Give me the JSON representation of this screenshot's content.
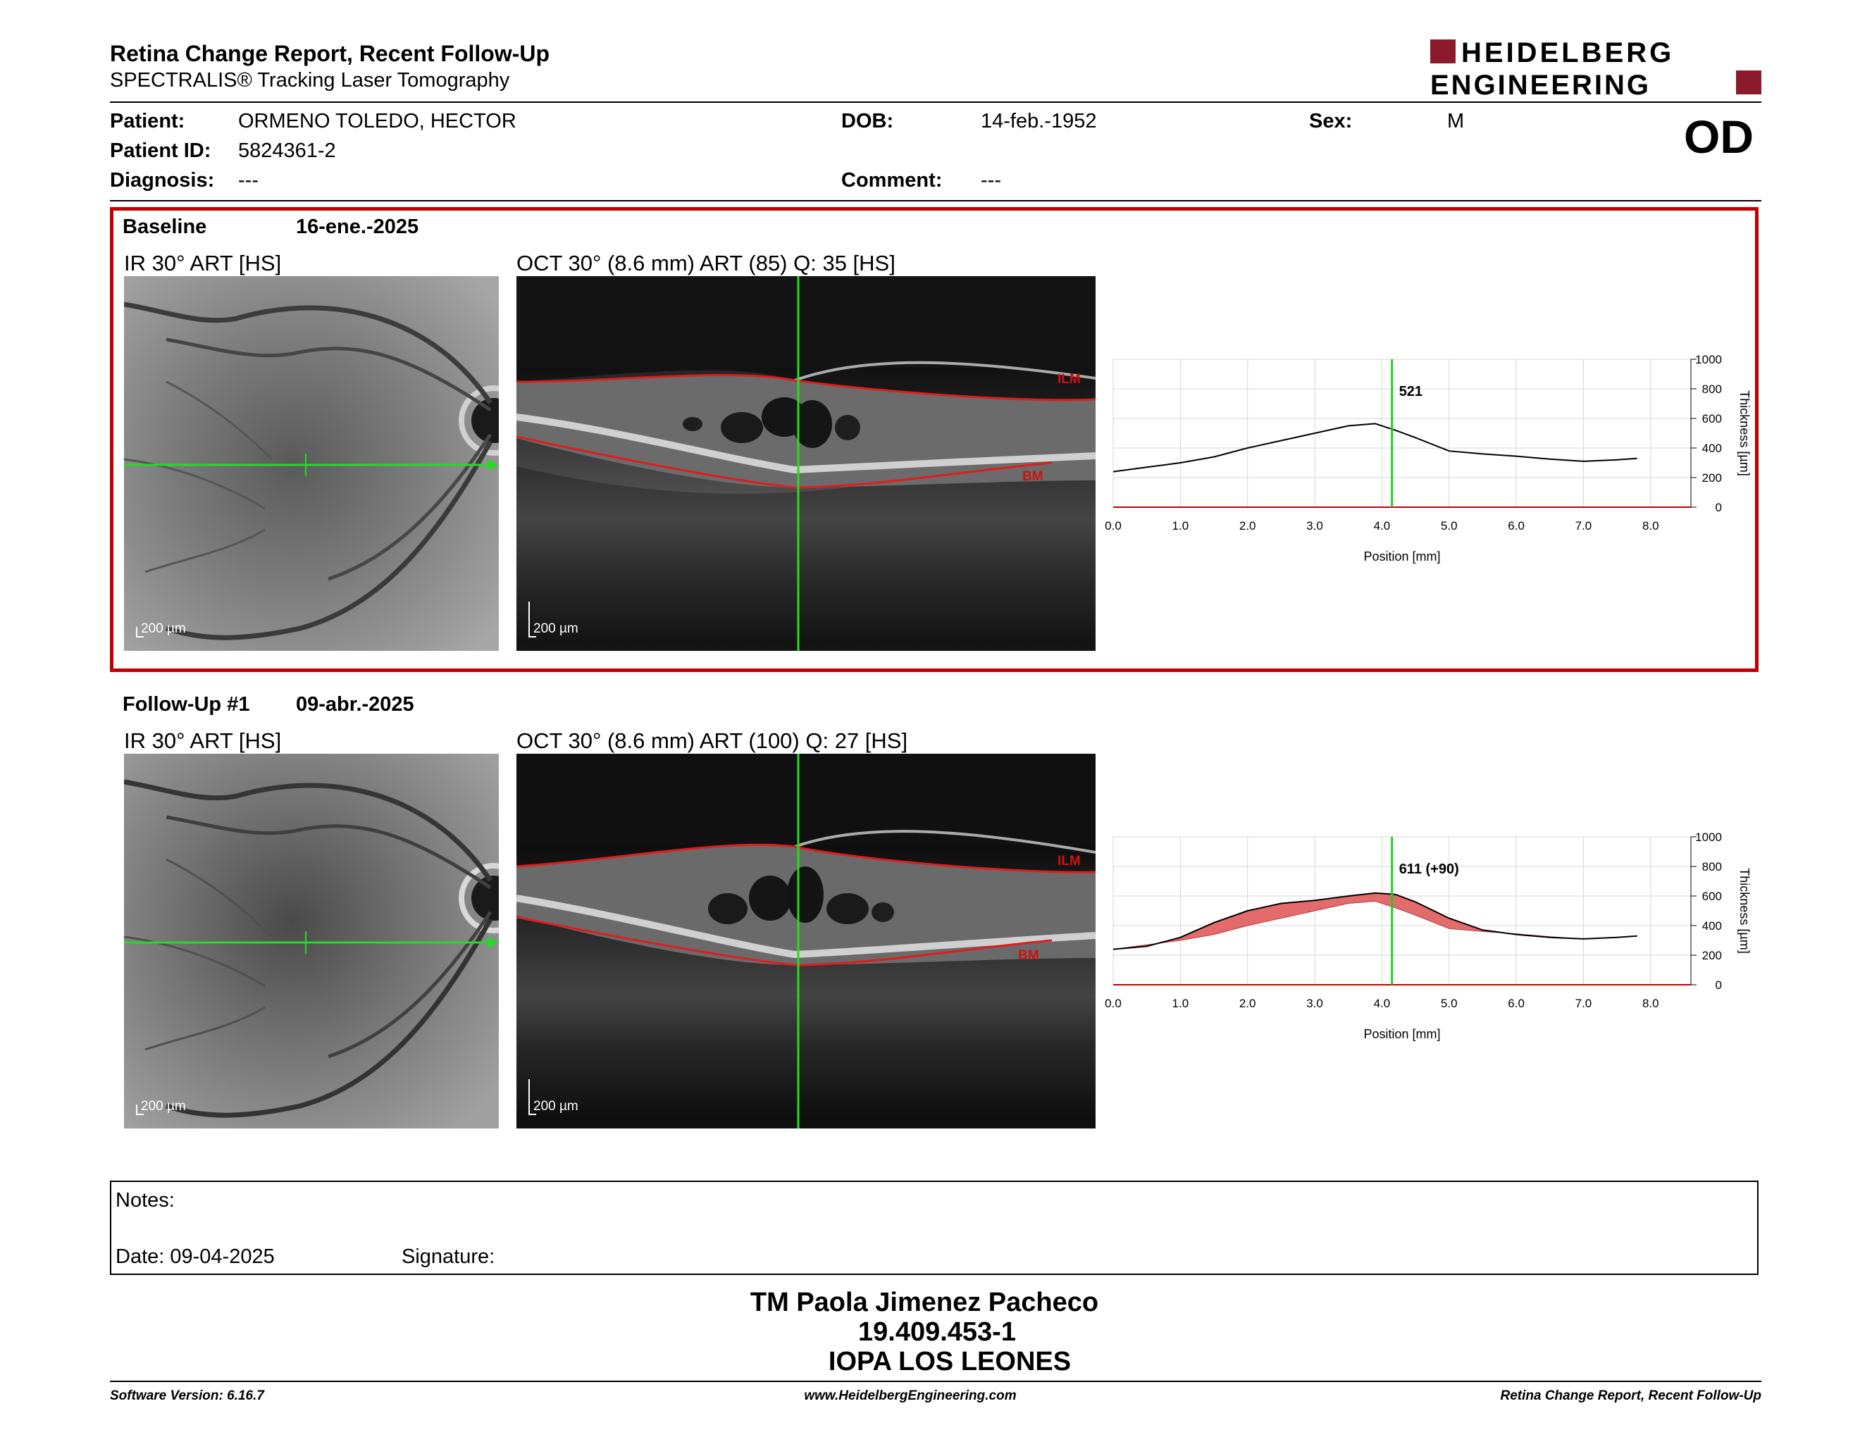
{
  "header": {
    "title": "Retina Change Report, Recent Follow-Up",
    "subtitle": "SPECTRALIS® Tracking Laser Tomography",
    "logo_line1": "HEIDELBERG",
    "logo_line2": "ENGINEERING",
    "brand_color": "#8b1a2b"
  },
  "patient": {
    "patient_label": "Patient:",
    "patient_value": "ORMENO TOLEDO, HECTOR",
    "id_label": "Patient ID:",
    "id_value": "5824361-2",
    "diagnosis_label": "Diagnosis:",
    "diagnosis_value": "---",
    "dob_label": "DOB:",
    "dob_value": "14-feb.-1952",
    "comment_label": "Comment:",
    "comment_value": "---",
    "sex_label": "Sex:",
    "sex_value": "M",
    "eye": "OD"
  },
  "baseline": {
    "label": "Baseline",
    "date": "16-ene.-2025",
    "ir_title": "IR 30° ART [HS]",
    "oct_title": "OCT 30° (8.6 mm) ART (85) Q: 35 [HS]",
    "scale": "200 µm",
    "ilm": "ILM",
    "bm": "BM",
    "highlight_color": "#c00000"
  },
  "followup": {
    "label": "Follow-Up #1",
    "date": "09-abr.-2025",
    "ir_title": "IR 30° ART [HS]",
    "oct_title": "OCT 30° (8.6 mm) ART (100) Q: 27 [HS]",
    "scale": "200 µm",
    "ilm": "ILM",
    "bm": "BM"
  },
  "chart_data": [
    {
      "type": "line",
      "title": "",
      "xlabel": "Position [mm]",
      "ylabel": "Thickness [µm]",
      "xlim": [
        0,
        8.6
      ],
      "ylim": [
        0,
        1000
      ],
      "x_ticks": [
        "0.0",
        "1.0",
        "2.0",
        "3.0",
        "4.0",
        "5.0",
        "6.0",
        "7.0",
        "8.0"
      ],
      "y_ticks": [
        "0",
        "200",
        "400",
        "600",
        "800",
        "1000"
      ],
      "cursor_x": 4.15,
      "cursor_label": "521",
      "grid": true,
      "series": [
        {
          "x": [
            0,
            0.5,
            1,
            1.5,
            2,
            2.5,
            3,
            3.5,
            3.9,
            4.2,
            4.5,
            5,
            5.5,
            6,
            6.5,
            7,
            7.5,
            7.8
          ],
          "values": [
            240,
            270,
            300,
            340,
            400,
            450,
            500,
            550,
            565,
            520,
            470,
            380,
            360,
            345,
            325,
            310,
            320,
            330
          ]
        }
      ]
    },
    {
      "type": "area",
      "title": "",
      "xlabel": "Position [mm]",
      "ylabel": "Thickness [µm]",
      "xlim": [
        0,
        8.6
      ],
      "ylim": [
        0,
        1000
      ],
      "x_ticks": [
        "0.0",
        "1.0",
        "2.0",
        "3.0",
        "4.0",
        "5.0",
        "6.0",
        "7.0",
        "8.0"
      ],
      "y_ticks": [
        "0",
        "200",
        "400",
        "600",
        "800",
        "1000"
      ],
      "cursor_x": 4.15,
      "cursor_label": "611 (+90)",
      "grid": true,
      "series": [
        {
          "x": [
            0,
            0.5,
            1,
            1.5,
            2,
            2.5,
            3,
            3.5,
            3.9,
            4.2,
            4.5,
            5,
            5.5,
            6,
            6.5,
            7,
            7.5,
            7.8
          ],
          "values": [
            240,
            260,
            320,
            420,
            500,
            550,
            570,
            600,
            620,
            611,
            560,
            450,
            370,
            340,
            320,
            310,
            320,
            330
          ]
        },
        {
          "x": [
            0,
            0.5,
            1,
            1.5,
            2,
            2.5,
            3,
            3.5,
            3.9,
            4.2,
            4.5,
            5,
            5.5,
            6,
            6.5,
            7,
            7.5,
            7.8
          ],
          "values": [
            240,
            270,
            300,
            340,
            400,
            450,
            500,
            550,
            565,
            520,
            470,
            380,
            360,
            345,
            325,
            310,
            320,
            330
          ]
        }
      ],
      "fill_color": "#e46b6b"
    }
  ],
  "notes": {
    "notes_label": "Notes:",
    "date_label": "Date: 09-04-2025",
    "signature_label": "Signature:"
  },
  "signature_block": {
    "name": "TM Paola Jimenez Pacheco",
    "rut": "19.409.453-1",
    "institution": "IOPA LOS LEONES"
  },
  "footer": {
    "version": "Software Version: 6.16.7",
    "url": "www.HeidelbergEngineering.com",
    "report": "Retina Change Report, Recent Follow-Up"
  }
}
